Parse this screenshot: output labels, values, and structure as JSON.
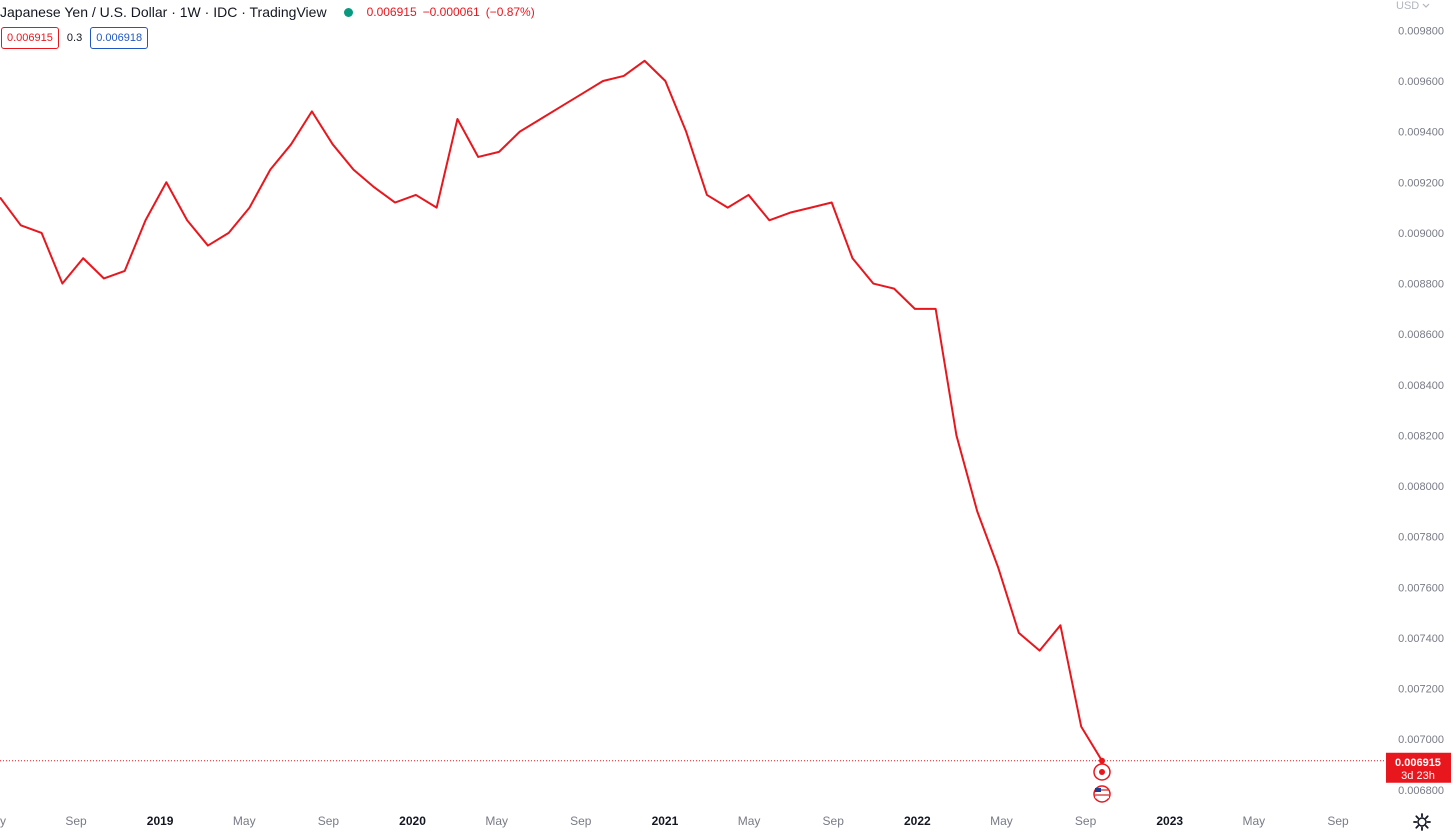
{
  "header": {
    "symbol": "Japanese Yen / U.S. Dollar · 1W · IDC · TradingView",
    "last_price": "0.006915",
    "change": "−0.000061",
    "change_pct": "(−0.87%)"
  },
  "badges": {
    "sell": "0.006915",
    "spread": "0.3",
    "buy": "0.006918"
  },
  "currency": "USD",
  "last_price_tag": {
    "price": "0.006915",
    "countdown": "3d 23h"
  },
  "colors": {
    "line": "#e8171e",
    "sell": "#e8171e",
    "buy": "#2157c3",
    "dot": "#089981",
    "grid_text": "#b2b5be"
  },
  "icons": [
    "status-dot-icon",
    "chevron-down-icon",
    "event-flag-icon",
    "us-flag-icon",
    "gear-icon"
  ],
  "chart_data": {
    "type": "line",
    "ylim": [
      0.00676,
      0.00992
    ],
    "x_axis_labels": [
      "y",
      "Sep",
      "2019",
      "May",
      "Sep",
      "2020",
      "May",
      "Sep",
      "2021",
      "May",
      "Sep",
      "2022",
      "May",
      "Sep",
      "2023",
      "May",
      "Sep"
    ],
    "y_ticks": [
      "0.006800",
      "0.007000",
      "0.007200",
      "0.007400",
      "0.007600",
      "0.007800",
      "0.008000",
      "0.008200",
      "0.008400",
      "0.008600",
      "0.008800",
      "0.009000",
      "0.009200",
      "0.009400",
      "0.009600",
      "0.009800"
    ],
    "series": [
      {
        "x": [
          "2018-05",
          "2018-06",
          "2018-07",
          "2018-08",
          "2018-09",
          "2018-10",
          "2018-11",
          "2018-12",
          "2019-01",
          "2019-02",
          "2019-03",
          "2019-04",
          "2019-05",
          "2019-06",
          "2019-07",
          "2019-08",
          "2019-09",
          "2019-10",
          "2019-11",
          "2019-12",
          "2020-01",
          "2020-02",
          "2020-03",
          "2020-04",
          "2020-05",
          "2020-06",
          "2020-07",
          "2020-08",
          "2020-09",
          "2020-10",
          "2020-11",
          "2020-12",
          "2021-01",
          "2021-02",
          "2021-03",
          "2021-04",
          "2021-05",
          "2021-06",
          "2021-07",
          "2021-08",
          "2021-09",
          "2021-10",
          "2021-11",
          "2021-12",
          "2022-01",
          "2022-02",
          "2022-03",
          "2022-04",
          "2022-05",
          "2022-06",
          "2022-07",
          "2022-08",
          "2022-09",
          "2022-10"
        ],
        "values": [
          0.00914,
          0.00903,
          0.009,
          0.0088,
          0.0089,
          0.00882,
          0.00885,
          0.00905,
          0.0092,
          0.00905,
          0.00895,
          0.009,
          0.0091,
          0.00925,
          0.00935,
          0.00948,
          0.00935,
          0.00925,
          0.00918,
          0.00912,
          0.00915,
          0.0091,
          0.00945,
          0.0093,
          0.00932,
          0.0094,
          0.00945,
          0.0095,
          0.00955,
          0.0096,
          0.00962,
          0.00968,
          0.0096,
          0.0094,
          0.00915,
          0.0091,
          0.00915,
          0.00905,
          0.00908,
          0.0091,
          0.00912,
          0.0089,
          0.0088,
          0.00878,
          0.0087,
          0.0087,
          0.0082,
          0.0079,
          0.00768,
          0.00742,
          0.00735,
          0.00745,
          0.00705,
          0.006915
        ]
      }
    ]
  }
}
